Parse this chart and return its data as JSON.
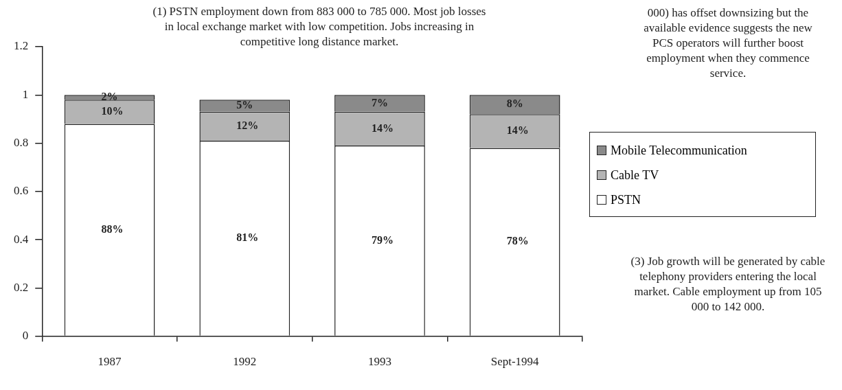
{
  "chart_data": {
    "type": "bar",
    "stacked": true,
    "categories": [
      "1987",
      "1992",
      "1993",
      "Sept-1994"
    ],
    "series": [
      {
        "name": "PSTN",
        "color": "#ffffff",
        "values": [
          0.88,
          0.81,
          0.79,
          0.78
        ],
        "value_labels": [
          "88%",
          "81%",
          "79%",
          "78%"
        ]
      },
      {
        "name": "Cable TV",
        "color": "#b4b4b4",
        "values": [
          0.1,
          0.12,
          0.14,
          0.14
        ],
        "value_labels": [
          "10%",
          "12%",
          "14%",
          "14%"
        ]
      },
      {
        "name": "Mobile Telecommunication",
        "color": "#8a8a8a",
        "values": [
          0.02,
          0.05,
          0.07,
          0.08
        ],
        "value_labels": [
          "2%",
          "5%",
          "7%",
          "8%"
        ]
      }
    ],
    "ylim": [
      0,
      1.2
    ],
    "yticks": [
      0,
      0.2,
      0.4,
      0.6,
      0.8,
      1,
      1.2
    ],
    "grid": false,
    "legend": "right",
    "annotations": [
      "(1) PSTN employment down from 883 000 to 785 000. Most job losses in local exchange market with low competition.  Jobs increasing in competitive long distance market.",
      "000) has offset downsizing but the available evidence suggests the new PCS operators will further boost employment when they commence service.",
      "(3) Job growth will be generated by cable telephony providers entering the local market. Cable employment up from 105 000 to 142 000."
    ]
  }
}
